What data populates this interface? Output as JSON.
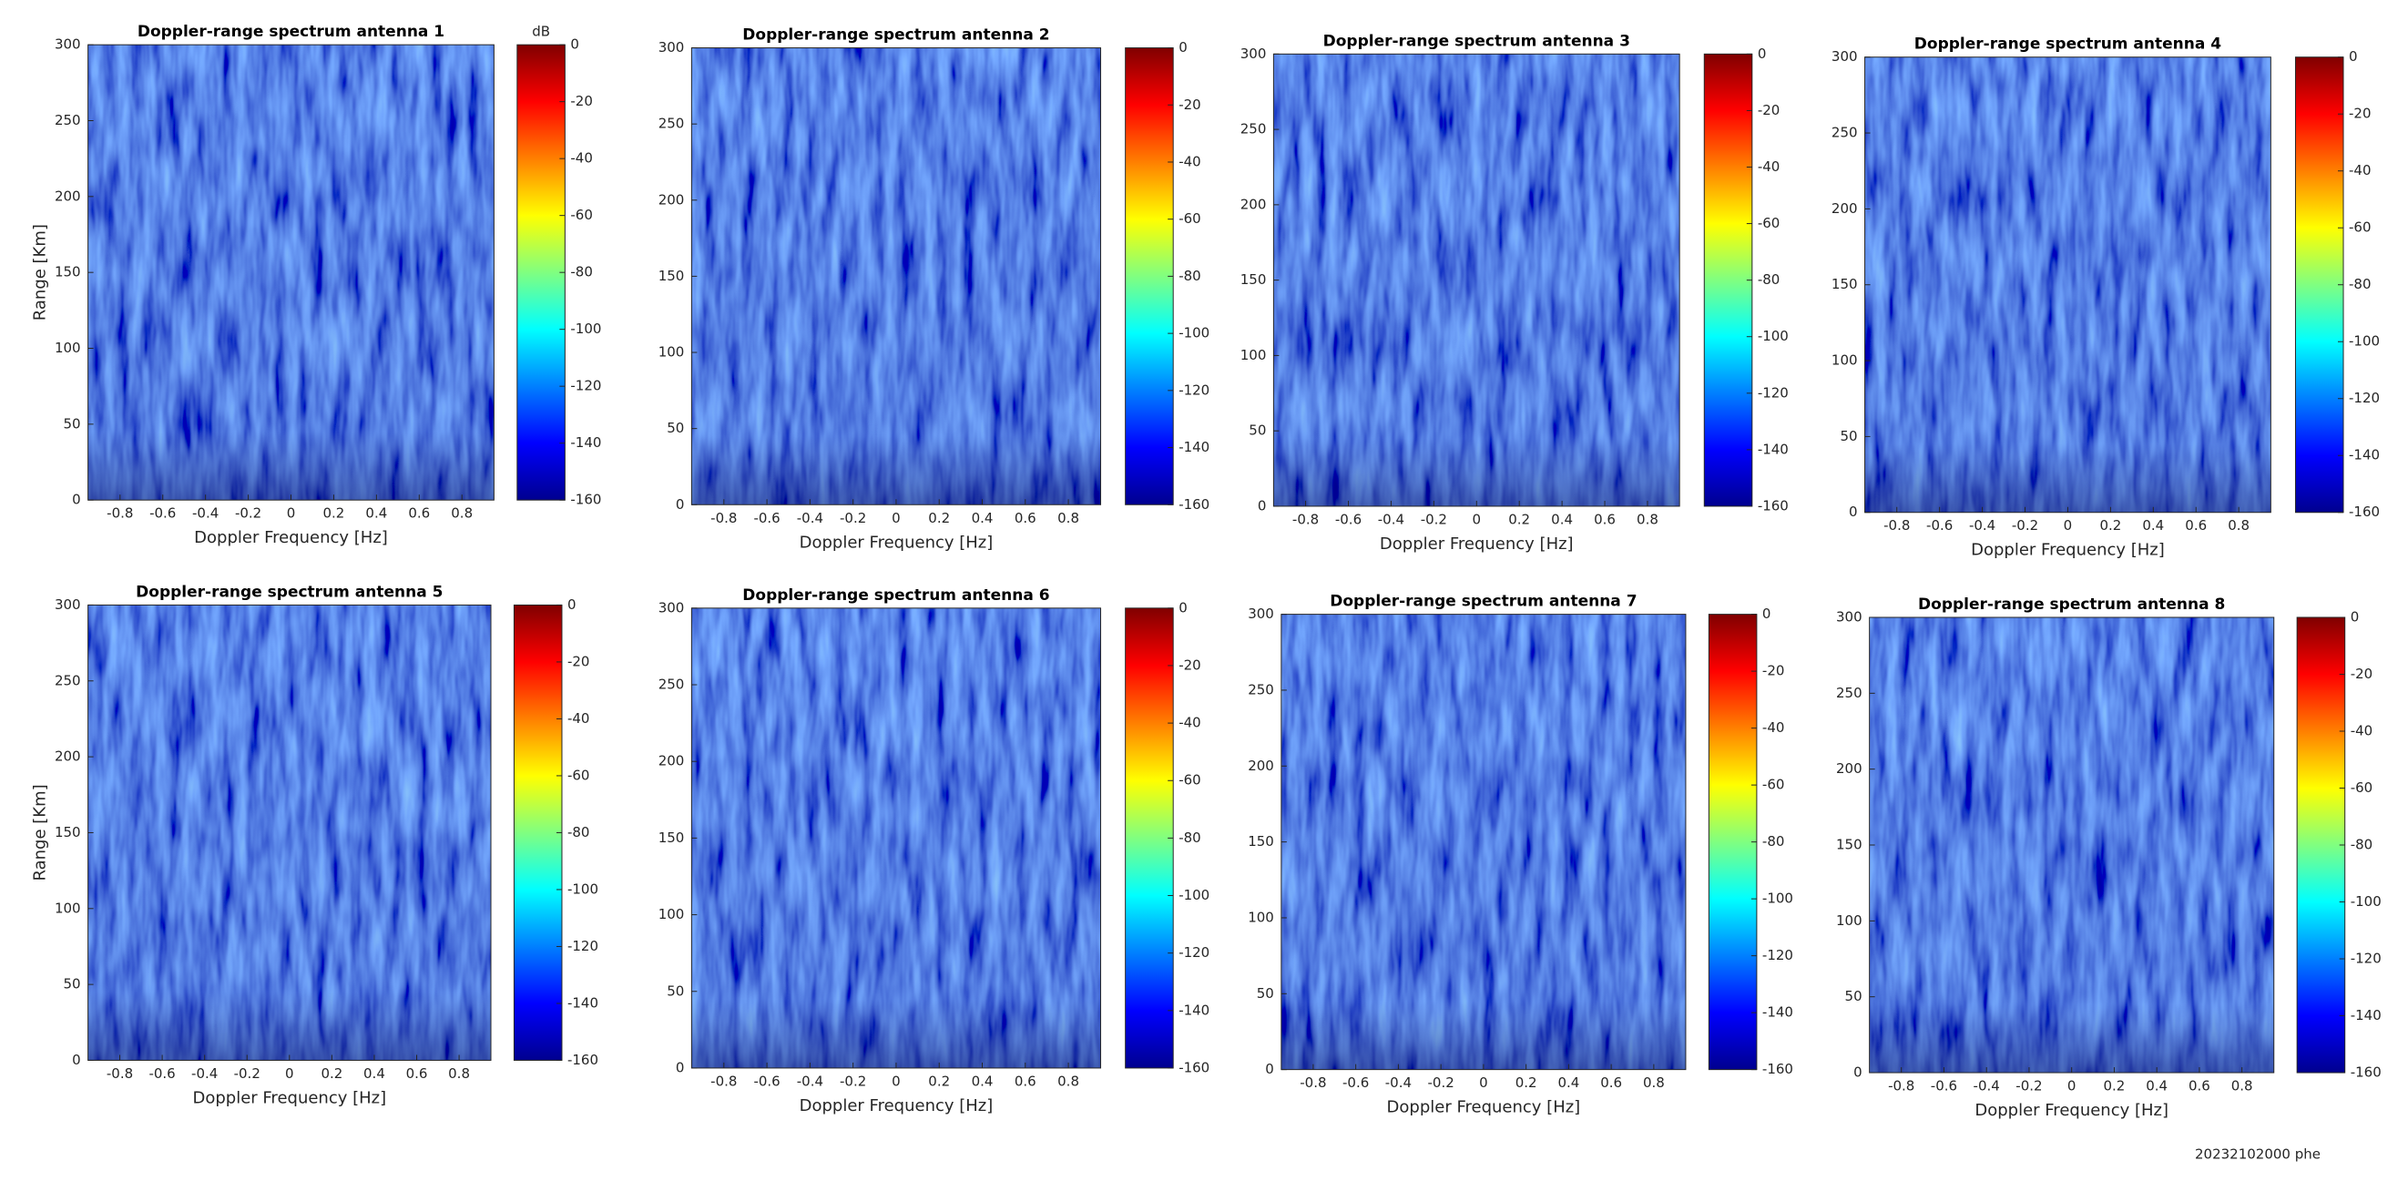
{
  "chart_data": [
    {
      "type": "heatmap",
      "title": "Doppler-range spectrum antenna 1",
      "x_label": "Doppler Frequency [Hz]",
      "y_label": "Range [Km]",
      "colorbar_label": "dB",
      "colormap": "jet",
      "xlim": [
        -0.95,
        0.95
      ],
      "xticks": [
        -0.8,
        -0.6,
        -0.4,
        -0.2,
        0,
        0.2,
        0.4,
        0.6,
        0.8
      ],
      "ylim": [
        0,
        300
      ],
      "yticks": [
        0,
        50,
        100,
        150,
        200,
        250,
        300
      ],
      "clim": [
        -160,
        0
      ],
      "cticks": [
        0,
        -20,
        -40,
        -60,
        -80,
        -100,
        -120,
        -140,
        -160
      ]
    },
    {
      "type": "heatmap",
      "title": "Doppler-range spectrum antenna 2",
      "x_label": "Doppler Frequency [Hz]",
      "colormap": "jet",
      "xlim": [
        -0.95,
        0.95
      ],
      "xticks": [
        -0.8,
        -0.6,
        -0.4,
        -0.2,
        0,
        0.2,
        0.4,
        0.6,
        0.8
      ],
      "ylim": [
        0,
        300
      ],
      "yticks": [
        0,
        50,
        100,
        150,
        200,
        250,
        300
      ],
      "clim": [
        -160,
        0
      ],
      "cticks": [
        0,
        -20,
        -40,
        -60,
        -80,
        -100,
        -120,
        -140,
        -160
      ]
    },
    {
      "type": "heatmap",
      "title": "Doppler-range spectrum antenna 3",
      "x_label": "Doppler Frequency [Hz]",
      "colormap": "jet",
      "xlim": [
        -0.95,
        0.95
      ],
      "xticks": [
        -0.8,
        -0.6,
        -0.4,
        -0.2,
        0,
        0.2,
        0.4,
        0.6,
        0.8
      ],
      "ylim": [
        0,
        300
      ],
      "yticks": [
        0,
        50,
        100,
        150,
        200,
        250,
        300
      ],
      "clim": [
        -160,
        0
      ],
      "cticks": [
        0,
        -20,
        -40,
        -60,
        -80,
        -100,
        -120,
        -140,
        -160
      ]
    },
    {
      "type": "heatmap",
      "title": "Doppler-range spectrum antenna 4",
      "x_label": "Doppler Frequency [Hz]",
      "colormap": "jet",
      "xlim": [
        -0.95,
        0.95
      ],
      "xticks": [
        -0.8,
        -0.6,
        -0.4,
        -0.2,
        0,
        0.2,
        0.4,
        0.6,
        0.8
      ],
      "ylim": [
        0,
        300
      ],
      "yticks": [
        0,
        50,
        100,
        150,
        200,
        250,
        300
      ],
      "clim": [
        -160,
        0
      ],
      "cticks": [
        0,
        -20,
        -40,
        -60,
        -80,
        -100,
        -120,
        -140,
        -160
      ]
    },
    {
      "type": "heatmap",
      "title": "Doppler-range spectrum antenna 5",
      "x_label": "Doppler Frequency [Hz]",
      "y_label": "Range [Km]",
      "colormap": "jet",
      "xlim": [
        -0.95,
        0.95
      ],
      "xticks": [
        -0.8,
        -0.6,
        -0.4,
        -0.2,
        0,
        0.2,
        0.4,
        0.6,
        0.8
      ],
      "ylim": [
        0,
        300
      ],
      "yticks": [
        0,
        50,
        100,
        150,
        200,
        250,
        300
      ],
      "clim": [
        -160,
        0
      ],
      "cticks": [
        0,
        -20,
        -40,
        -60,
        -80,
        -100,
        -120,
        -140,
        -160
      ]
    },
    {
      "type": "heatmap",
      "title": "Doppler-range spectrum antenna 6",
      "x_label": "Doppler Frequency [Hz]",
      "colormap": "jet",
      "xlim": [
        -0.95,
        0.95
      ],
      "xticks": [
        -0.8,
        -0.6,
        -0.4,
        -0.2,
        0,
        0.2,
        0.4,
        0.6,
        0.8
      ],
      "ylim": [
        0,
        300
      ],
      "yticks": [
        0,
        50,
        100,
        150,
        200,
        250,
        300
      ],
      "clim": [
        -160,
        0
      ],
      "cticks": [
        0,
        -20,
        -40,
        -60,
        -80,
        -100,
        -120,
        -140,
        -160
      ]
    },
    {
      "type": "heatmap",
      "title": "Doppler-range spectrum antenna 7",
      "x_label": "Doppler Frequency [Hz]",
      "colormap": "jet",
      "xlim": [
        -0.95,
        0.95
      ],
      "xticks": [
        -0.8,
        -0.6,
        -0.4,
        -0.2,
        0,
        0.2,
        0.4,
        0.6,
        0.8
      ],
      "ylim": [
        0,
        300
      ],
      "yticks": [
        0,
        50,
        100,
        150,
        200,
        250,
        300
      ],
      "clim": [
        -160,
        0
      ],
      "cticks": [
        0,
        -20,
        -40,
        -60,
        -80,
        -100,
        -120,
        -140,
        -160
      ]
    },
    {
      "type": "heatmap",
      "title": "Doppler-range spectrum antenna 8",
      "x_label": "Doppler Frequency [Hz]",
      "colormap": "jet",
      "xlim": [
        -0.95,
        0.95
      ],
      "xticks": [
        -0.8,
        -0.6,
        -0.4,
        -0.2,
        0,
        0.2,
        0.4,
        0.6,
        0.8
      ],
      "ylim": [
        0,
        300
      ],
      "yticks": [
        0,
        50,
        100,
        150,
        200,
        250,
        300
      ],
      "clim": [
        -160,
        0
      ],
      "cticks": [
        0,
        -20,
        -40,
        -60,
        -80,
        -100,
        -120,
        -140,
        -160
      ]
    }
  ],
  "footer": "20232102000 phe"
}
